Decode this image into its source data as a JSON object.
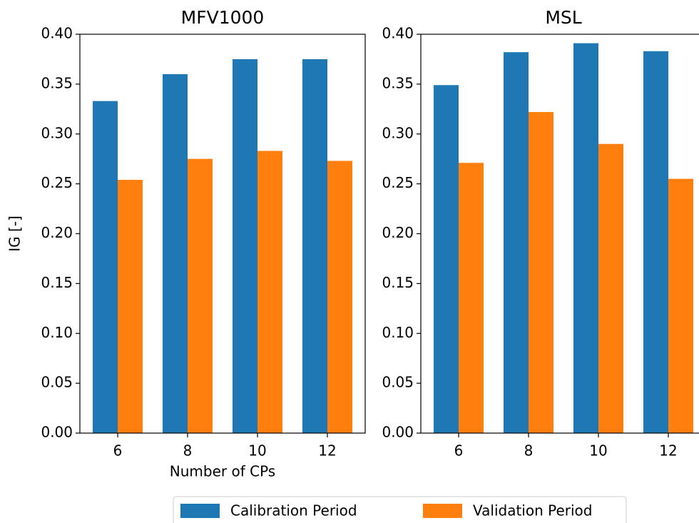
{
  "chart_data": [
    {
      "type": "bar",
      "title": "MFV1000",
      "xlabel": "Number of CPs",
      "ylabel": "IG [-]",
      "categories": [
        "6",
        "8",
        "10",
        "12"
      ],
      "series": [
        {
          "name": "Calibration Period",
          "color": "#1f77b4",
          "values": [
            0.333,
            0.36,
            0.375,
            0.375
          ]
        },
        {
          "name": "Validation Period",
          "color": "#ff7f0e",
          "values": [
            0.254,
            0.275,
            0.283,
            0.273
          ]
        }
      ],
      "ylim": [
        0,
        0.4
      ],
      "yticks": [
        {
          "value": 0,
          "label": "0.00"
        },
        {
          "value": 0.05,
          "label": "0.05"
        },
        {
          "value": 0.1,
          "label": "0.10"
        },
        {
          "value": 0.15,
          "label": "0.15"
        },
        {
          "value": 0.2,
          "label": "0.20"
        },
        {
          "value": 0.25,
          "label": "0.25"
        },
        {
          "value": 0.3,
          "label": "0.30"
        },
        {
          "value": 0.35,
          "label": "0.35"
        },
        {
          "value": 0.4,
          "label": "0.40"
        }
      ]
    },
    {
      "type": "bar",
      "title": "MSL",
      "categories": [
        "6",
        "8",
        "10",
        "12"
      ],
      "series": [
        {
          "name": "Calibration Period",
          "color": "#1f77b4",
          "values": [
            0.349,
            0.382,
            0.391,
            0.383
          ]
        },
        {
          "name": "Validation Period",
          "color": "#ff7f0e",
          "values": [
            0.271,
            0.322,
            0.29,
            0.255
          ]
        }
      ],
      "ylim": [
        0,
        0.4
      ],
      "yticks": [
        {
          "value": 0,
          "label": "0.00"
        },
        {
          "value": 0.05,
          "label": "0.05"
        },
        {
          "value": 0.1,
          "label": "0.10"
        },
        {
          "value": 0.15,
          "label": "0.15"
        },
        {
          "value": 0.2,
          "label": "0.20"
        },
        {
          "value": 0.25,
          "label": "0.25"
        },
        {
          "value": 0.3,
          "label": "0.30"
        },
        {
          "value": 0.35,
          "label": "0.35"
        },
        {
          "value": 0.4,
          "label": "0.40"
        }
      ]
    }
  ]
}
